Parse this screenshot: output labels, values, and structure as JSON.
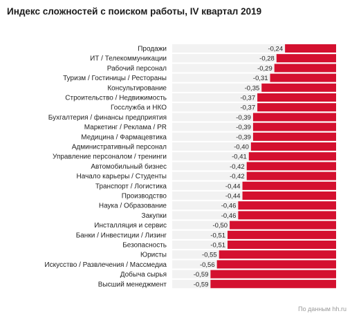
{
  "chart_data": {
    "type": "bar",
    "orientation": "horizontal",
    "title": "Индекс сложностей с поиском работы, IV квартал 2019",
    "source": "По данным hh.ru",
    "bar_color": "#d4102f",
    "track_color": "#f2f2f2",
    "categories": [
      "Продажи",
      "ИТ / Телекоммуникации",
      "Рабочий персонал",
      "Туризм / Гостиницы / Рестораны",
      "Консультирование",
      "Строительство / Недвижимость",
      "Госслужба и НКО",
      "Бухгалтерия / финансы предприятия",
      "Маркетинг / Реклама / PR",
      "Медицина / Фармацевтика",
      "Административный персонал",
      "Управление персоналом / тренинги",
      "Автомобильный бизнес",
      "Начало карьеры / Студенты",
      "Транспорт / Логистика",
      "Производство",
      "Наука / Образование",
      "Закупки",
      "Инсталляция и сервис",
      "Банки / Инвестиции / Лизинг",
      "Безопасность",
      "Юристы",
      "Искусство / Развлечения / Массмедиа",
      "Добыча сырья",
      "Высший менеджмент"
    ],
    "values": [
      -0.24,
      -0.28,
      -0.29,
      -0.31,
      -0.35,
      -0.37,
      -0.37,
      -0.39,
      -0.39,
      -0.39,
      -0.4,
      -0.41,
      -0.42,
      -0.42,
      -0.44,
      -0.44,
      -0.46,
      -0.46,
      -0.5,
      -0.51,
      -0.51,
      -0.55,
      -0.56,
      -0.59,
      -0.59
    ],
    "value_labels": [
      "-0,24",
      "-0,28",
      "-0,29",
      "-0,31",
      "-0,35",
      "-0,37",
      "-0,37",
      "-0,39",
      "-0,39",
      "-0,39",
      "-0,40",
      "-0,41",
      "-0,42",
      "-0,42",
      "-0,44",
      "-0,44",
      "-0,46",
      "-0,46",
      "-0,50",
      "-0,51",
      "-0,51",
      "-0,55",
      "-0,56",
      "-0,59",
      "-0,59"
    ],
    "xlim": [
      -0.77,
      0
    ]
  }
}
